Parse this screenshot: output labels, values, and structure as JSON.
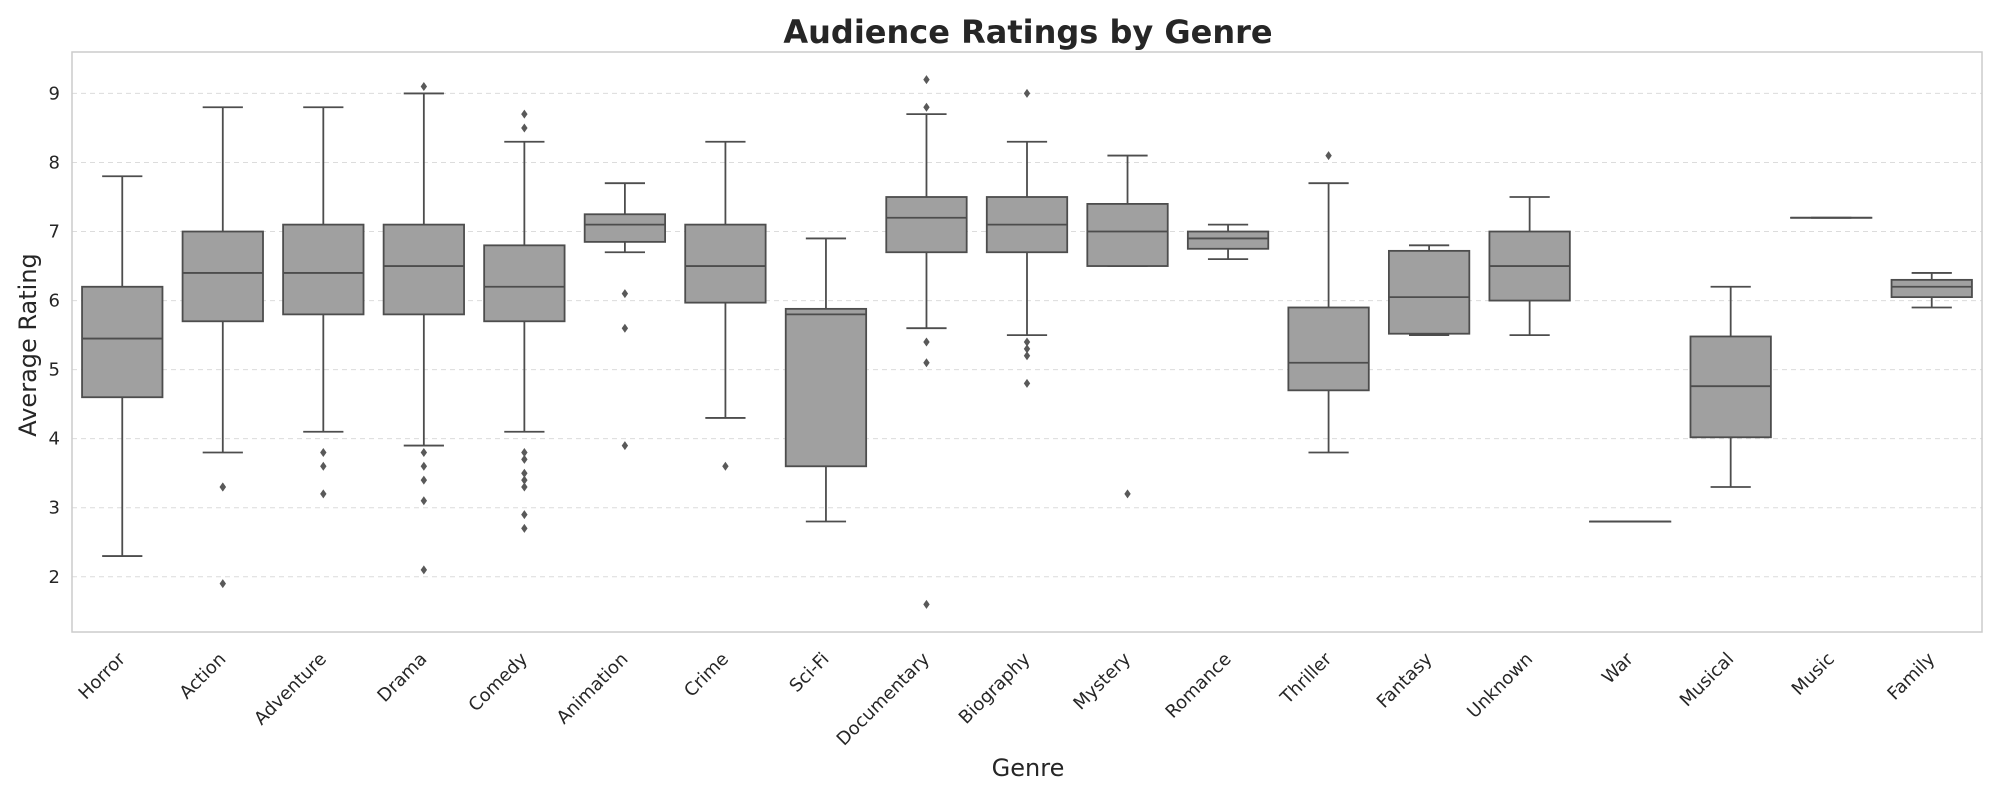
{
  "chart_data": {
    "type": "box",
    "title": "Audience Ratings by Genre",
    "xlabel": "Genre",
    "ylabel": "Average Rating",
    "ylim": [
      1.2,
      9.6
    ],
    "yticks": [
      2,
      3,
      4,
      5,
      6,
      7,
      8,
      9
    ],
    "grid": "horizontal-dashed",
    "colors": {
      "box_fill": "#a0a0a0",
      "line": "#4d4d4d",
      "grid": "#dcdcdc",
      "text": "#262626"
    },
    "categories": [
      "Horror",
      "Action",
      "Adventure",
      "Drama",
      "Comedy",
      "Animation",
      "Crime",
      "Sci-Fi",
      "Documentary",
      "Biography",
      "Mystery",
      "Romance",
      "Thriller",
      "Fantasy",
      "Unknown",
      "War",
      "Musical",
      "Music",
      "Family"
    ],
    "boxes": [
      {
        "q1": 4.6,
        "median": 5.45,
        "q3": 6.2,
        "whislo": 2.3,
        "whishi": 7.8,
        "fliers": []
      },
      {
        "q1": 5.7,
        "median": 6.4,
        "q3": 7.0,
        "whislo": 3.8,
        "whishi": 8.8,
        "fliers": [
          3.3,
          3.3,
          1.9
        ]
      },
      {
        "q1": 5.8,
        "median": 6.4,
        "q3": 7.1,
        "whislo": 4.1,
        "whishi": 8.8,
        "fliers": [
          3.8,
          3.6,
          3.2
        ]
      },
      {
        "q1": 5.8,
        "median": 6.5,
        "q3": 7.1,
        "whislo": 3.9,
        "whishi": 9.0,
        "fliers": [
          9.1,
          3.8,
          3.6,
          3.4,
          3.1,
          2.1
        ]
      },
      {
        "q1": 5.7,
        "median": 6.2,
        "q3": 6.8,
        "whislo": 4.1,
        "whishi": 8.3,
        "fliers": [
          8.7,
          8.5,
          3.8,
          3.7,
          3.5,
          3.4,
          3.3,
          2.9,
          2.7
        ]
      },
      {
        "q1": 6.85,
        "median": 7.1,
        "q3": 7.25,
        "whislo": 6.7,
        "whishi": 7.7,
        "fliers": [
          6.1,
          5.6,
          3.9
        ]
      },
      {
        "q1": 5.97,
        "median": 6.5,
        "q3": 7.1,
        "whislo": 4.3,
        "whishi": 8.3,
        "fliers": [
          3.6
        ]
      },
      {
        "q1": 3.6,
        "median": 5.8,
        "q3": 5.88,
        "whislo": 2.8,
        "whishi": 6.9,
        "fliers": []
      },
      {
        "q1": 6.7,
        "median": 7.2,
        "q3": 7.5,
        "whislo": 5.6,
        "whishi": 8.7,
        "fliers": [
          9.2,
          8.8,
          5.4,
          5.1,
          1.6
        ]
      },
      {
        "q1": 6.7,
        "median": 7.1,
        "q3": 7.5,
        "whislo": 5.5,
        "whishi": 8.3,
        "fliers": [
          9.0,
          5.4,
          5.3,
          5.2,
          4.8
        ]
      },
      {
        "q1": 6.5,
        "median": 7.0,
        "q3": 7.4,
        "whislo": 6.5,
        "whishi": 8.1,
        "fliers": [
          3.2
        ]
      },
      {
        "q1": 6.75,
        "median": 6.9,
        "q3": 7.0,
        "whislo": 6.6,
        "whishi": 7.1,
        "fliers": []
      },
      {
        "q1": 4.7,
        "median": 5.1,
        "q3": 5.9,
        "whislo": 3.8,
        "whishi": 7.7,
        "fliers": [
          8.1
        ]
      },
      {
        "q1": 5.52,
        "median": 6.05,
        "q3": 6.72,
        "whislo": 5.5,
        "whishi": 6.8,
        "fliers": []
      },
      {
        "q1": 6.0,
        "median": 6.5,
        "q3": 7.0,
        "whislo": 5.5,
        "whishi": 7.5,
        "fliers": []
      },
      {
        "q1": 2.8,
        "median": 2.8,
        "q3": 2.8,
        "whislo": 2.8,
        "whishi": 2.8,
        "fliers": []
      },
      {
        "q1": 4.02,
        "median": 4.76,
        "q3": 5.48,
        "whislo": 3.3,
        "whishi": 6.2,
        "fliers": []
      },
      {
        "q1": 7.2,
        "median": 7.2,
        "q3": 7.2,
        "whislo": 7.2,
        "whishi": 7.2,
        "fliers": []
      },
      {
        "q1": 6.05,
        "median": 6.2,
        "q3": 6.3,
        "whislo": 5.9,
        "whishi": 6.4,
        "fliers": []
      }
    ]
  }
}
